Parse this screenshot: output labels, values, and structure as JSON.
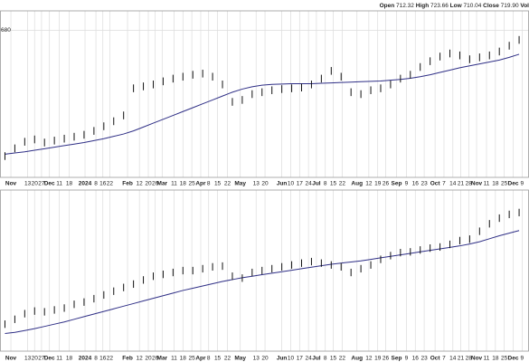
{
  "header": {
    "quote": [
      {
        "label": "Open",
        "value": "712.32"
      },
      {
        "label": "High",
        "value": "723.66"
      },
      {
        "label": "Low",
        "value": "710.04"
      },
      {
        "label": "Close",
        "value": "719.90"
      }
    ],
    "volume_label": "Vol"
  },
  "chart_data": [
    {
      "type": "ohlc",
      "color": "#111111",
      "ma_color": "#2f2f86",
      "xlim": [
        -0.5,
        53
      ],
      "ylim": [
        300,
        730
      ],
      "yticks": [
        680
      ],
      "grid": true,
      "xticks": [
        {
          "value": 0.6,
          "label": "Nov"
        },
        {
          "value": 2.3,
          "label": "13"
        },
        {
          "value": 3,
          "label": "20"
        },
        {
          "value": 3.7,
          "label": "27"
        },
        {
          "value": 4.5,
          "label": "Dec"
        },
        {
          "value": 5.5,
          "label": "11"
        },
        {
          "value": 6.5,
          "label": "18"
        },
        {
          "value": 8.1,
          "label": "2024"
        },
        {
          "value": 9.2,
          "label": "8"
        },
        {
          "value": 9.9,
          "label": "16"
        },
        {
          "value": 10.6,
          "label": "22"
        },
        {
          "value": 12.4,
          "label": "Feb"
        },
        {
          "value": 13.6,
          "label": "12"
        },
        {
          "value": 14.5,
          "label": "20"
        },
        {
          "value": 15.2,
          "label": "26"
        },
        {
          "value": 15.9,
          "label": "Mar"
        },
        {
          "value": 17.1,
          "label": "11"
        },
        {
          "value": 18,
          "label": "18"
        },
        {
          "value": 18.9,
          "label": "25"
        },
        {
          "value": 19.8,
          "label": "Apr"
        },
        {
          "value": 20.6,
          "label": "8"
        },
        {
          "value": 21.5,
          "label": "15"
        },
        {
          "value": 22.5,
          "label": "22"
        },
        {
          "value": 23.8,
          "label": "May"
        },
        {
          "value": 25.4,
          "label": "13"
        },
        {
          "value": 26.3,
          "label": "20"
        },
        {
          "value": 28,
          "label": "Jun"
        },
        {
          "value": 28.9,
          "label": "10"
        },
        {
          "value": 29.8,
          "label": "17"
        },
        {
          "value": 30.7,
          "label": "24"
        },
        {
          "value": 31.5,
          "label": "Jul"
        },
        {
          "value": 32.4,
          "label": "8"
        },
        {
          "value": 33.2,
          "label": "15"
        },
        {
          "value": 34.1,
          "label": "22"
        },
        {
          "value": 35.6,
          "label": "Aug"
        },
        {
          "value": 36.8,
          "label": "12"
        },
        {
          "value": 37.7,
          "label": "19"
        },
        {
          "value": 38.5,
          "label": "26"
        },
        {
          "value": 39.6,
          "label": "Sep"
        },
        {
          "value": 40.6,
          "label": "9"
        },
        {
          "value": 41.5,
          "label": "16"
        },
        {
          "value": 42.4,
          "label": "23"
        },
        {
          "value": 43.5,
          "label": "Oct"
        },
        {
          "value": 44.4,
          "label": "7"
        },
        {
          "value": 45.3,
          "label": "14"
        },
        {
          "value": 46.1,
          "label": "21"
        },
        {
          "value": 46.9,
          "label": "28"
        },
        {
          "value": 47.7,
          "label": "Nov"
        },
        {
          "value": 48.7,
          "label": "11"
        },
        {
          "value": 49.6,
          "label": "18"
        },
        {
          "value": 50.5,
          "label": "25"
        },
        {
          "value": 51.4,
          "label": "Dec"
        },
        {
          "value": 52.3,
          "label": "9"
        }
      ],
      "high": [
        365,
        385,
        402,
        408,
        400,
        405,
        410,
        415,
        420,
        430,
        442,
        455,
        470,
        540,
        545,
        550,
        558,
        565,
        570,
        575,
        578,
        570,
        550,
        505,
        510,
        525,
        530,
        535,
        538,
        540,
        542,
        550,
        565,
        585,
        570,
        530,
        525,
        535,
        540,
        550,
        565,
        575,
        595,
        610,
        622,
        630,
        625,
        615,
        620,
        625,
        635,
        650,
        665
      ],
      "low": [
        345,
        365,
        382,
        388,
        380,
        385,
        390,
        395,
        400,
        410,
        422,
        435,
        450,
        520,
        525,
        530,
        538,
        545,
        550,
        555,
        558,
        550,
        530,
        485,
        490,
        505,
        510,
        515,
        518,
        520,
        522,
        530,
        545,
        565,
        550,
        510,
        505,
        515,
        520,
        530,
        545,
        555,
        575,
        590,
        602,
        610,
        605,
        595,
        600,
        605,
        615,
        630,
        645
      ],
      "ma": [
        360,
        363,
        366,
        370,
        374,
        378,
        382,
        386,
        390,
        395,
        400,
        406,
        412,
        420,
        430,
        440,
        450,
        460,
        470,
        480,
        490,
        500,
        510,
        520,
        528,
        534,
        538,
        540,
        541,
        542,
        542,
        542,
        543,
        544,
        545,
        546,
        547,
        548,
        549,
        551,
        553,
        556,
        560,
        565,
        571,
        577,
        583,
        588,
        593,
        598,
        603,
        610,
        618
      ]
    },
    {
      "type": "ohlc",
      "color": "#111111",
      "ma_color": "#2f2f86",
      "xlim": [
        -0.5,
        53
      ],
      "ylim": [
        300,
        730
      ],
      "yticks": [],
      "grid": true,
      "xticks": [
        {
          "value": 0.6,
          "label": "Nov"
        },
        {
          "value": 2.3,
          "label": "13"
        },
        {
          "value": 3,
          "label": "20"
        },
        {
          "value": 3.7,
          "label": "27"
        },
        {
          "value": 4.5,
          "label": "Dec"
        },
        {
          "value": 5.5,
          "label": "11"
        },
        {
          "value": 6.5,
          "label": "18"
        },
        {
          "value": 8.1,
          "label": "2024"
        },
        {
          "value": 9.2,
          "label": "8"
        },
        {
          "value": 9.9,
          "label": "16"
        },
        {
          "value": 10.6,
          "label": "22"
        },
        {
          "value": 12.4,
          "label": "Feb"
        },
        {
          "value": 13.6,
          "label": "12"
        },
        {
          "value": 14.5,
          "label": "20"
        },
        {
          "value": 15.2,
          "label": "26"
        },
        {
          "value": 15.9,
          "label": "Mar"
        },
        {
          "value": 17.1,
          "label": "11"
        },
        {
          "value": 18,
          "label": "18"
        },
        {
          "value": 18.9,
          "label": "25"
        },
        {
          "value": 19.8,
          "label": "Apr"
        },
        {
          "value": 20.6,
          "label": "8"
        },
        {
          "value": 21.5,
          "label": "15"
        },
        {
          "value": 22.5,
          "label": "22"
        },
        {
          "value": 23.8,
          "label": "May"
        },
        {
          "value": 25.4,
          "label": "13"
        },
        {
          "value": 26.3,
          "label": "20"
        },
        {
          "value": 28,
          "label": "Jun"
        },
        {
          "value": 28.9,
          "label": "10"
        },
        {
          "value": 29.8,
          "label": "17"
        },
        {
          "value": 30.7,
          "label": "24"
        },
        {
          "value": 31.5,
          "label": "Jul"
        },
        {
          "value": 32.4,
          "label": "8"
        },
        {
          "value": 33.2,
          "label": "15"
        },
        {
          "value": 34.1,
          "label": "22"
        },
        {
          "value": 35.6,
          "label": "Aug"
        },
        {
          "value": 36.8,
          "label": "12"
        },
        {
          "value": 37.7,
          "label": "19"
        },
        {
          "value": 38.5,
          "label": "26"
        },
        {
          "value": 39.6,
          "label": "Sep"
        },
        {
          "value": 40.6,
          "label": "9"
        },
        {
          "value": 41.5,
          "label": "16"
        },
        {
          "value": 42.4,
          "label": "23"
        },
        {
          "value": 43.5,
          "label": "Oct"
        },
        {
          "value": 44.4,
          "label": "7"
        },
        {
          "value": 45.3,
          "label": "14"
        },
        {
          "value": 46.1,
          "label": "21"
        },
        {
          "value": 46.9,
          "label": "28"
        },
        {
          "value": 47.7,
          "label": "Nov"
        },
        {
          "value": 48.7,
          "label": "11"
        },
        {
          "value": 49.6,
          "label": "18"
        },
        {
          "value": 50.5,
          "label": "25"
        },
        {
          "value": 51.4,
          "label": "Dec"
        },
        {
          "value": 52.3,
          "label": "9"
        }
      ],
      "high": [
        382,
        395,
        410,
        417,
        415,
        420,
        425,
        435,
        441,
        450,
        460,
        470,
        480,
        489,
        500,
        510,
        515,
        520,
        525,
        525,
        530,
        535,
        537,
        510,
        505,
        520,
        525,
        530,
        535,
        540,
        545,
        549,
        545,
        540,
        535,
        520,
        530,
        540,
        555,
        565,
        573,
        575,
        580,
        585,
        588,
        595,
        605,
        609,
        630,
        650,
        665,
        675,
        680
      ],
      "low": [
        362,
        375,
        390,
        397,
        395,
        400,
        405,
        415,
        421,
        430,
        440,
        450,
        460,
        469,
        480,
        490,
        495,
        500,
        505,
        505,
        510,
        515,
        517,
        490,
        485,
        500,
        505,
        510,
        515,
        520,
        525,
        529,
        525,
        520,
        515,
        500,
        510,
        520,
        535,
        545,
        553,
        555,
        560,
        565,
        568,
        575,
        585,
        589,
        610,
        630,
        645,
        655,
        660
      ],
      "ma": [
        347,
        350,
        355,
        360,
        366,
        372,
        378,
        385,
        392,
        399,
        406,
        413,
        420,
        427,
        434,
        441,
        448,
        455,
        462,
        468,
        474,
        480,
        486,
        491,
        496,
        500,
        504,
        508,
        512,
        516,
        520,
        524,
        528,
        532,
        535,
        538,
        541,
        545,
        549,
        553,
        557,
        561,
        565,
        569,
        573,
        577,
        581,
        586,
        592,
        600,
        608,
        615,
        622
      ]
    }
  ]
}
